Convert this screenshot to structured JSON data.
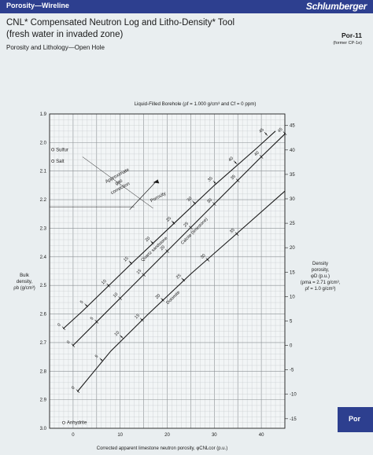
{
  "header": {
    "section_tag": "Porosity—Wireline",
    "logo": "Schlumberger",
    "title_line1": "CNL* Compensated Neutron Log and Litho-Density* Tool",
    "title_line2": "(fresh water in invaded zone)",
    "subtitle": "Porosity and Lithology—Open Hole",
    "chart_id": "Por-11",
    "chart_former": "(former CP-1e)"
  },
  "side_tab": "Por",
  "chart_data": {
    "type": "line",
    "title": "Liquid-Filled Borehole (ρf = 1.000 g/cm³ and Cf = 0 ppm)",
    "xlabel": "Corrected apparent limestone neutron porosity, φCNLcor (p.u.)",
    "ylabel_left": [
      "Bulk",
      "density,",
      "ρb (g/cm³)"
    ],
    "ylabel_right": [
      "Density",
      "porosity,",
      "φD (p.u.)",
      "(ρma = 2.71 g/cm³,",
      "ρf = 1.0 g/cm³)"
    ],
    "xlim": [
      -5,
      45
    ],
    "ylim": [
      1.9,
      3.0
    ],
    "x_ticks": [
      0,
      10,
      20,
      30,
      40
    ],
    "y_ticks": [
      1.9,
      2.0,
      2.1,
      2.2,
      2.3,
      2.4,
      2.5,
      2.6,
      2.7,
      2.8,
      2.9,
      3.0
    ],
    "right_ticks": [
      45,
      40,
      35,
      30,
      25,
      20,
      15,
      10,
      5,
      0,
      -5,
      -10,
      -15
    ],
    "grid": true,
    "series": [
      {
        "name": "Quartz sandstone",
        "points": [
          [
            -2,
            2.65
          ],
          [
            2,
            2.59
          ],
          [
            12,
            2.43
          ],
          [
            21,
            2.29
          ],
          [
            30,
            2.15
          ],
          [
            39,
            2.02
          ],
          [
            43,
            1.96
          ]
        ],
        "scale_labels": [
          {
            "label": "0",
            "x": -2,
            "y": 2.65
          },
          {
            "label": "5",
            "x": 2.8,
            "y": 2.57
          },
          {
            "label": "10",
            "x": 7.5,
            "y": 2.5
          },
          {
            "label": "15",
            "x": 12.2,
            "y": 2.42
          },
          {
            "label": "20",
            "x": 16.8,
            "y": 2.35
          },
          {
            "label": "25",
            "x": 21.3,
            "y": 2.28
          },
          {
            "label": "30",
            "x": 25.7,
            "y": 2.21
          },
          {
            "label": "35",
            "x": 30.1,
            "y": 2.14
          },
          {
            "label": "40",
            "x": 34.5,
            "y": 2.07
          },
          {
            "label": "45",
            "x": 41,
            "y": 1.97
          }
        ]
      },
      {
        "name": "Calcite (limestone)",
        "points": [
          [
            0,
            2.71
          ],
          [
            10,
            2.545
          ],
          [
            20,
            2.38
          ],
          [
            30,
            2.215
          ],
          [
            40,
            2.05
          ],
          [
            45,
            1.97
          ]
        ],
        "scale_labels": [
          {
            "label": "0",
            "x": 0,
            "y": 2.71
          },
          {
            "label": "5",
            "x": 5,
            "y": 2.627
          },
          {
            "label": "10",
            "x": 10,
            "y": 2.545
          },
          {
            "label": "15",
            "x": 15,
            "y": 2.463
          },
          {
            "label": "20",
            "x": 20,
            "y": 2.38
          },
          {
            "label": "25",
            "x": 25,
            "y": 2.298
          },
          {
            "label": "30",
            "x": 30,
            "y": 2.215
          },
          {
            "label": "35",
            "x": 35,
            "y": 2.133
          },
          {
            "label": "40",
            "x": 40,
            "y": 2.05
          },
          {
            "label": "45",
            "x": 45,
            "y": 1.968
          }
        ]
      },
      {
        "name": "Dolomite",
        "points": [
          [
            1,
            2.87
          ],
          [
            8,
            2.73
          ],
          [
            16,
            2.6
          ],
          [
            25,
            2.46
          ],
          [
            34,
            2.33
          ],
          [
            45,
            2.17
          ]
        ],
        "scale_labels": [
          {
            "label": "0",
            "x": 1,
            "y": 2.87
          },
          {
            "label": "5",
            "x": 6,
            "y": 2.76
          },
          {
            "label": "10",
            "x": 10.3,
            "y": 2.68
          },
          {
            "label": "15",
            "x": 14.6,
            "y": 2.62
          },
          {
            "label": "20",
            "x": 19,
            "y": 2.55
          },
          {
            "label": "25",
            "x": 23.4,
            "y": 2.48
          },
          {
            "label": "30",
            "x": 28.6,
            "y": 2.41
          },
          {
            "label": "35",
            "x": 34.8,
            "y": 2.32
          }
        ]
      }
    ],
    "porosity_axis_label": "Porosity",
    "gas_correction_label": [
      "Approximate",
      "gas",
      "correction"
    ],
    "minerals": [
      {
        "name": "Sulfur",
        "x": -4.3,
        "y": 2.025
      },
      {
        "name": "Salt",
        "x": -4.3,
        "y": 2.065
      },
      {
        "name": "Anhydrite",
        "x": -2,
        "y": 2.98
      }
    ]
  }
}
